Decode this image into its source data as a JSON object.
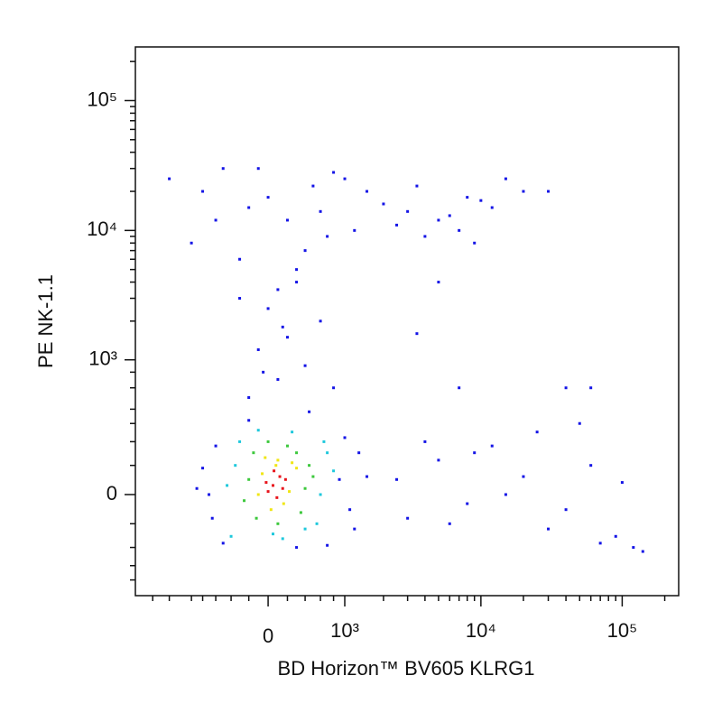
{
  "chart_data": {
    "type": "scatter",
    "x_label": "BD Horizon™ BV605 KLRG1",
    "y_label": "PE NK-1.1",
    "scale": "biexponential",
    "xlim": [
      -2680,
      251000
    ],
    "ylim": [
      -540,
      259000
    ],
    "xticks": [
      0,
      {
        "value": 1000,
        "label": "10³"
      },
      {
        "value": 10000,
        "label": "10⁴"
      },
      {
        "value": 100000,
        "label": "10⁵"
      }
    ],
    "yticks": [
      0,
      {
        "value": 1000,
        "label": "10³"
      },
      {
        "value": 10000,
        "label": "10⁴"
      },
      {
        "value": 100000,
        "label": "10⁵"
      }
    ],
    "xminorticks": [
      -2000,
      -1500,
      -1000,
      -800,
      -600,
      -400,
      -200,
      200,
      400,
      600,
      800,
      2000,
      3000,
      4000,
      5000,
      6000,
      7000,
      8000,
      9000,
      20000,
      30000,
      40000,
      50000,
      60000,
      70000,
      80000,
      90000,
      200000
    ],
    "yminorticks": [
      -400,
      -300,
      -200,
      -100,
      100,
      200,
      300,
      400,
      600,
      800,
      2000,
      3000,
      4000,
      5000,
      6000,
      7000,
      8000,
      9000,
      20000,
      30000,
      40000,
      50000,
      60000,
      70000,
      80000,
      90000,
      200000
    ],
    "series": [
      {
        "color": "#1414e6",
        "x": [
          -700,
          -600,
          900,
          1100,
          -500,
          1000,
          -800,
          300,
          -200,
          700,
          1300,
          -650,
          1500,
          -900,
          450,
          1200,
          -200,
          100,
          400,
          -100,
          200,
          600,
          0,
          -300,
          300,
          800,
          -50,
          150,
          -1500,
          -800,
          -500,
          -200,
          0,
          200,
          500,
          800,
          1200,
          2000,
          3000,
          5000,
          8000,
          12000,
          20000,
          -1000,
          -300,
          300,
          700,
          1500,
          2500,
          4000,
          6000,
          10000,
          15000,
          -600,
          100,
          400,
          1000,
          3500,
          7000,
          -100,
          600,
          9000,
          30000,
          2500,
          4000,
          6000,
          9000,
          15000,
          25000,
          40000,
          60000,
          90000,
          120000,
          3000,
          5000,
          8000,
          12000,
          20000,
          30000,
          50000,
          70000,
          100000,
          140000,
          3500,
          7000,
          40000,
          60000,
          5000
        ],
        "values": [
          0,
          180,
          50,
          -50,
          -180,
          220,
          90,
          -200,
          320,
          -190,
          150,
          -80,
          60,
          20,
          380,
          -120,
          500,
          700,
          900,
          1200,
          1500,
          2000,
          2500,
          3000,
          4000,
          600,
          800,
          1800,
          25000,
          20000,
          30000,
          15000,
          18000,
          12000,
          22000,
          28000,
          10000,
          16000,
          14000,
          12000,
          18000,
          15000,
          20000,
          8000,
          6000,
          5000,
          9000,
          20000,
          11000,
          9000,
          13000,
          17000,
          25000,
          12000,
          3500,
          7000,
          25000,
          22000,
          10000,
          30000,
          14000,
          8000,
          20000,
          50,
          200,
          -100,
          150,
          0,
          250,
          -50,
          100,
          -150,
          -200,
          -80,
          120,
          -30,
          180,
          60,
          -120,
          300,
          -180,
          40,
          -220,
          1600,
          600,
          600,
          600,
          4000
        ]
      },
      {
        "color": "#1ec8dc",
        "x": [
          -350,
          600,
          -300,
          550,
          250,
          -400,
          700,
          50,
          -100,
          400,
          650,
          -450,
          150,
          800
        ],
        "values": [
          100,
          0,
          200,
          -100,
          250,
          -150,
          150,
          -140,
          260,
          -120,
          200,
          30,
          -160,
          80
        ]
      },
      {
        "color": "#3cc83c",
        "x": [
          -200,
          400,
          -150,
          350,
          200,
          -250,
          450,
          0,
          100,
          -120,
          300,
          500
        ],
        "values": [
          50,
          20,
          150,
          -60,
          180,
          -20,
          100,
          200,
          -100,
          -80,
          150,
          60
        ]
      },
      {
        "color": "#f0e614",
        "x": [
          -60,
          220,
          100,
          300,
          -100,
          30,
          250,
          160,
          -30,
          80
        ],
        "values": [
          70,
          10,
          120,
          90,
          0,
          -50,
          110,
          -30,
          130,
          100
        ]
      },
      {
        "color": "#e8141c",
        "x": [
          50,
          120,
          0,
          180,
          90,
          -20,
          150,
          60
        ],
        "values": [
          30,
          60,
          10,
          50,
          -10,
          40,
          20,
          80
        ]
      }
    ]
  }
}
